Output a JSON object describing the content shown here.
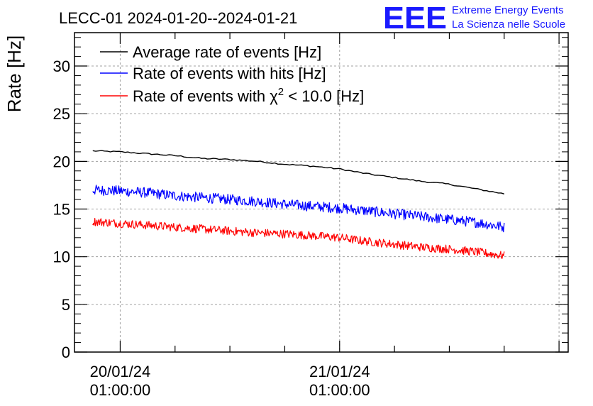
{
  "chart_data": {
    "type": "line",
    "title": "LECC-01 2024-01-20--2024-01-21",
    "ylabel": "Rate [Hz]",
    "xlabel": "",
    "ylim": [
      0,
      33.5
    ],
    "y_ticks": [
      "0",
      "5",
      "10",
      "15",
      "20",
      "25",
      "30"
    ],
    "x_tick_labels": [
      {
        "x": "2024-01-20 01:00:00",
        "date": "20/01/24",
        "time": "01:00:00"
      },
      {
        "x": "2024-01-21 01:00:00",
        "date": "21/01/24",
        "time": "01:00:00"
      }
    ],
    "grid": true,
    "legend_position": "top-left",
    "legend": [
      {
        "text": "Average rate of events [Hz]",
        "color": "#000000"
      },
      {
        "text": "Rate of events with hits [Hz]",
        "color": "#0000ff"
      },
      {
        "text_prefix": "Rate of events with ",
        "chi": "χ",
        "sup": "2",
        "text_suffix": " < 10.0 [Hz]",
        "color": "#ff0000"
      }
    ],
    "series": [
      {
        "name": "Average rate of events [Hz]",
        "color": "#000000",
        "x": [
          "2024-01-19 22:00",
          "2024-01-20 01:00",
          "2024-01-20 04:00",
          "2024-01-20 07:00",
          "2024-01-20 10:00",
          "2024-01-20 13:00",
          "2024-01-20 16:00",
          "2024-01-20 19:00",
          "2024-01-20 22:00",
          "2024-01-21 01:00",
          "2024-01-21 04:00",
          "2024-01-21 07:00",
          "2024-01-21 10:00",
          "2024-01-21 13:00",
          "2024-01-21 16:00",
          "2024-01-21 19:00"
        ],
        "values": [
          21.1,
          21.0,
          20.8,
          20.6,
          20.3,
          20.2,
          20.0,
          19.7,
          19.5,
          19.2,
          18.7,
          18.3,
          17.9,
          17.6,
          17.1,
          16.6
        ]
      },
      {
        "name": "Rate of events with hits [Hz]",
        "color": "#0000ff",
        "x": [
          "2024-01-19 22:00",
          "2024-01-20 01:00",
          "2024-01-20 04:00",
          "2024-01-20 07:00",
          "2024-01-20 10:00",
          "2024-01-20 13:00",
          "2024-01-20 16:00",
          "2024-01-20 19:00",
          "2024-01-20 22:00",
          "2024-01-21 01:00",
          "2024-01-21 04:00",
          "2024-01-21 07:00",
          "2024-01-21 10:00",
          "2024-01-21 13:00",
          "2024-01-21 16:00",
          "2024-01-21 19:00"
        ],
        "values": [
          17.0,
          16.9,
          16.7,
          16.4,
          16.2,
          16.0,
          15.8,
          15.5,
          15.3,
          15.1,
          14.8,
          14.5,
          14.2,
          13.9,
          13.6,
          13.1
        ]
      },
      {
        "name": "Rate of events with χ2 < 10.0 [Hz]",
        "color": "#ff0000",
        "x": [
          "2024-01-19 22:00",
          "2024-01-20 01:00",
          "2024-01-20 04:00",
          "2024-01-20 07:00",
          "2024-01-20 10:00",
          "2024-01-20 13:00",
          "2024-01-20 16:00",
          "2024-01-20 19:00",
          "2024-01-20 22:00",
          "2024-01-21 01:00",
          "2024-01-21 04:00",
          "2024-01-21 07:00",
          "2024-01-21 10:00",
          "2024-01-21 13:00",
          "2024-01-21 16:00",
          "2024-01-21 19:00"
        ],
        "values": [
          13.7,
          13.5,
          13.3,
          13.1,
          12.9,
          12.7,
          12.5,
          12.4,
          12.2,
          12.0,
          11.6,
          11.3,
          11.0,
          10.8,
          10.5,
          10.1
        ]
      }
    ]
  },
  "logo": {
    "mark": "EEE",
    "line1": "Extreme Energy Events",
    "line2": "La Scienza nelle Scuole",
    "color": "#1a1aff"
  }
}
